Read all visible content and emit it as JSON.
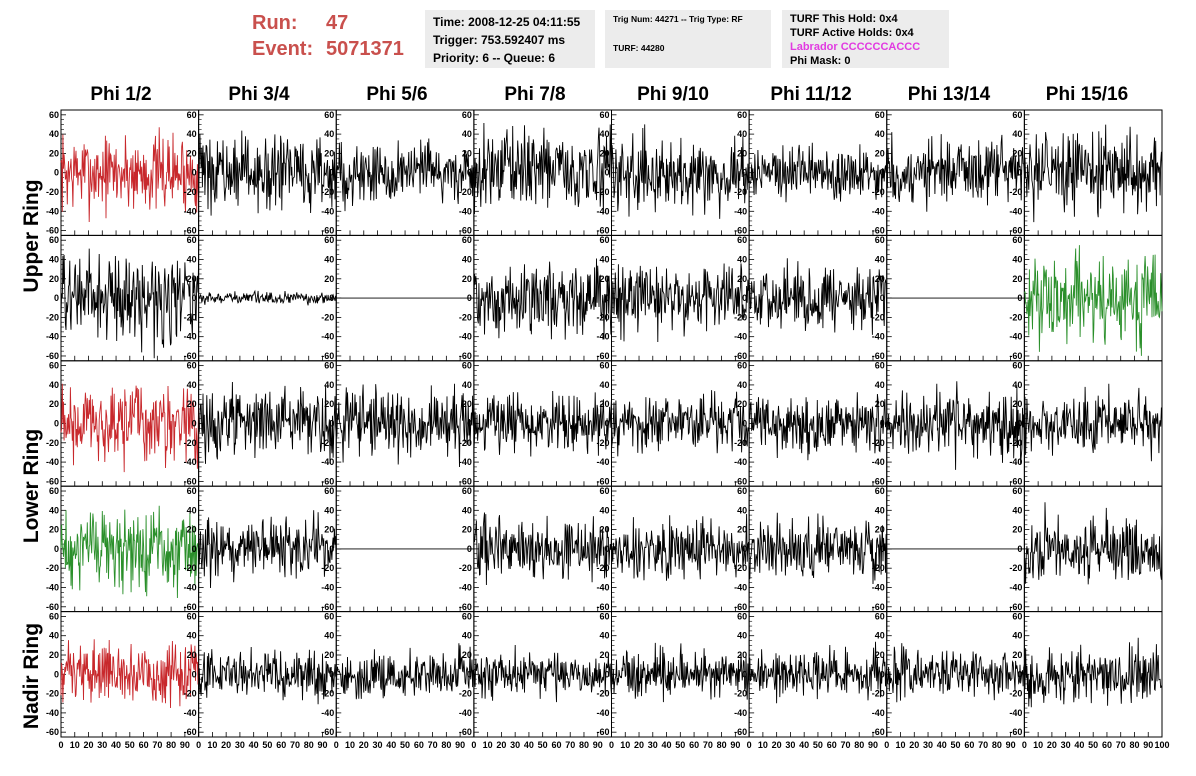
{
  "header": {
    "run_label": "Run:",
    "run_value": "47",
    "event_label": "Event:",
    "event_value": "5071371",
    "time": "Time: 2008-12-25 04:11:55",
    "trigger": "Trigger: 753.592407 ms",
    "priority": "Priority: 6 -- Queue: 6",
    "trig_num": "Trig Num: 44271 -- Trig Type: RF",
    "turf": "TURF: 44280",
    "turf_this_hold": "TURF This Hold: 0x4",
    "turf_active_holds": "TURF Active Holds: 0x4",
    "labrador": "Labrador CCCCCCACCC",
    "phi_mask": "Phi Mask: 0"
  },
  "columns": [
    "Phi 1/2",
    "Phi 3/4",
    "Phi 5/6",
    "Phi 7/8",
    "Phi 9/10",
    "Phi 11/12",
    "Phi 13/14",
    "Phi 15/16"
  ],
  "ring_labels": [
    "Upper Ring",
    "Lower Ring",
    "Nadir Ring"
  ],
  "colors": {
    "title": "#c9504d",
    "red_trace": "#c8282c",
    "green_trace": "#2a8f2a",
    "black_trace": "#000000",
    "labrador": "#e13ae1"
  },
  "chart_data": {
    "type": "line",
    "xlim": [
      0,
      100
    ],
    "ylim": [
      -65,
      65
    ],
    "y_ticks": [
      -60,
      -40,
      -20,
      0,
      20,
      40,
      60
    ],
    "x_ticks": [
      0,
      10,
      20,
      30,
      40,
      50,
      60,
      70,
      80,
      90,
      100
    ],
    "rows": 5,
    "cols": 8,
    "panel_colors": [
      [
        "red",
        "black",
        "black",
        "black",
        "black",
        "black",
        "black",
        "black"
      ],
      [
        "black",
        "black",
        "black",
        "black",
        "black",
        "black",
        "black",
        "green"
      ],
      [
        "red",
        "black",
        "black",
        "black",
        "black",
        "black",
        "black",
        "black"
      ],
      [
        "green",
        "black",
        "black",
        "black",
        "black",
        "black",
        "black",
        "black"
      ],
      [
        "red",
        "black",
        "black",
        "black",
        "black",
        "black",
        "black",
        "black"
      ]
    ],
    "panel_amplitudes": [
      [
        20,
        18,
        16,
        20,
        18,
        14,
        17,
        20
      ],
      [
        22,
        3,
        0,
        18,
        17,
        16,
        0,
        22
      ],
      [
        20,
        17,
        17,
        15,
        15,
        15,
        17,
        15
      ],
      [
        20,
        16,
        0,
        16,
        15,
        15,
        0,
        17
      ],
      [
        15,
        12,
        12,
        12,
        12,
        12,
        12,
        14
      ]
    ]
  }
}
